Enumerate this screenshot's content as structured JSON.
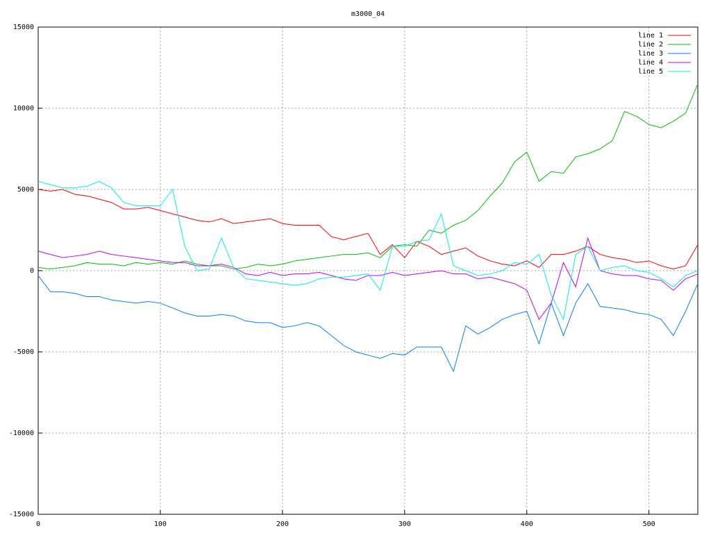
{
  "chart_data": {
    "type": "line",
    "title": "m3000_04",
    "x": [
      0,
      10,
      20,
      30,
      40,
      50,
      60,
      70,
      80,
      90,
      100,
      110,
      120,
      130,
      140,
      150,
      160,
      170,
      180,
      190,
      200,
      210,
      220,
      230,
      240,
      250,
      260,
      270,
      280,
      290,
      300,
      310,
      320,
      330,
      340,
      350,
      360,
      370,
      380,
      390,
      400,
      410,
      420,
      430,
      440,
      450,
      460,
      470,
      480,
      490,
      500,
      510,
      520,
      530,
      540
    ],
    "series": [
      {
        "name": "line 1",
        "color": "#ff0000",
        "values": [
          5000,
          4900,
          5000,
          4700,
          4600,
          4400,
          4200,
          3800,
          3800,
          3900,
          3700,
          3500,
          3300,
          3100,
          3000,
          3200,
          2900,
          3000,
          3100,
          3200,
          2900,
          2800,
          2800,
          2800,
          2100,
          1900,
          2100,
          2300,
          1000,
          1600,
          800,
          1800,
          1500,
          1000,
          1200,
          1400,
          900,
          600,
          400,
          300,
          600,
          200,
          1000,
          1000,
          1200,
          1500,
          1000,
          800,
          700,
          500,
          600,
          300,
          100,
          300,
          1600
        ]
      },
      {
        "name": "line 2",
        "color": "#00c000",
        "values": [
          200,
          100,
          200,
          300,
          500,
          400,
          400,
          300,
          500,
          400,
          500,
          400,
          600,
          400,
          300,
          300,
          100,
          200,
          400,
          300,
          400,
          600,
          700,
          800,
          900,
          1000,
          1000,
          1100,
          800,
          1500,
          1600,
          1500,
          2500,
          2300,
          2800,
          3100,
          3700,
          4600,
          5400,
          6700,
          7300,
          5500,
          6100,
          6000,
          7000,
          7200,
          7500,
          8000,
          9800,
          9500,
          9000,
          8800,
          9200,
          9700,
          11500
        ]
      },
      {
        "name": "line 3",
        "color": "#0080ff",
        "values": [
          -300,
          -1300,
          -1300,
          -1400,
          -1600,
          -1600,
          -1800,
          -1900,
          -2000,
          -1900,
          -2000,
          -2300,
          -2600,
          -2800,
          -2800,
          -2700,
          -2800,
          -3100,
          -3200,
          -3200,
          -3500,
          -3400,
          -3200,
          -3400,
          -4000,
          -4600,
          -5000,
          -5200,
          -5400,
          -5100,
          -5200,
          -4700,
          -4700,
          -4700,
          -6200,
          -3400,
          -3900,
          -3500,
          -3000,
          -2700,
          -2500,
          -4500,
          -2000,
          -4000,
          -2000,
          -800,
          -2200,
          -2300,
          -2400,
          -2600,
          -2700,
          -3000,
          -4000,
          -2500,
          -800
        ]
      },
      {
        "name": "line 4",
        "color": "#c000ff",
        "values": [
          1200,
          1000,
          800,
          900,
          1000,
          1200,
          1000,
          900,
          800,
          700,
          600,
          500,
          500,
          300,
          300,
          400,
          200,
          -200,
          -300,
          -100,
          -300,
          -200,
          -200,
          -100,
          -300,
          -500,
          -600,
          -300,
          -300,
          -100,
          -300,
          -200,
          -100,
          0,
          -200,
          -200,
          -500,
          -400,
          -600,
          -800,
          -1200,
          -3000,
          -2000,
          500,
          -1000,
          2000,
          0,
          -200,
          -300,
          -300,
          -500,
          -600,
          -1200,
          -500,
          -200
        ]
      },
      {
        "name": "line 5",
        "color": "#00eeee",
        "values": [
          5500,
          5300,
          5100,
          5100,
          5200,
          5500,
          5100,
          4200,
          4000,
          4000,
          4000,
          5000,
          1500,
          0,
          100,
          2000,
          200,
          -500,
          -600,
          -700,
          -800,
          -900,
          -800,
          -500,
          -400,
          -400,
          -300,
          -200,
          -1200,
          1500,
          1500,
          1800,
          1900,
          3500,
          300,
          0,
          -300,
          -200,
          0,
          500,
          400,
          1000,
          -1500,
          -3000,
          1000,
          1500,
          0,
          200,
          300,
          0,
          -100,
          -500,
          -1000,
          -300,
          0
        ]
      }
    ],
    "xlim": [
      0,
      540
    ],
    "ylim": [
      -15000,
      15000
    ],
    "xticks": [
      0,
      100,
      200,
      300,
      400,
      500
    ],
    "yticks": [
      -15000,
      -10000,
      -5000,
      0,
      5000,
      10000,
      15000
    ],
    "grid": true,
    "legend": "top-right"
  }
}
